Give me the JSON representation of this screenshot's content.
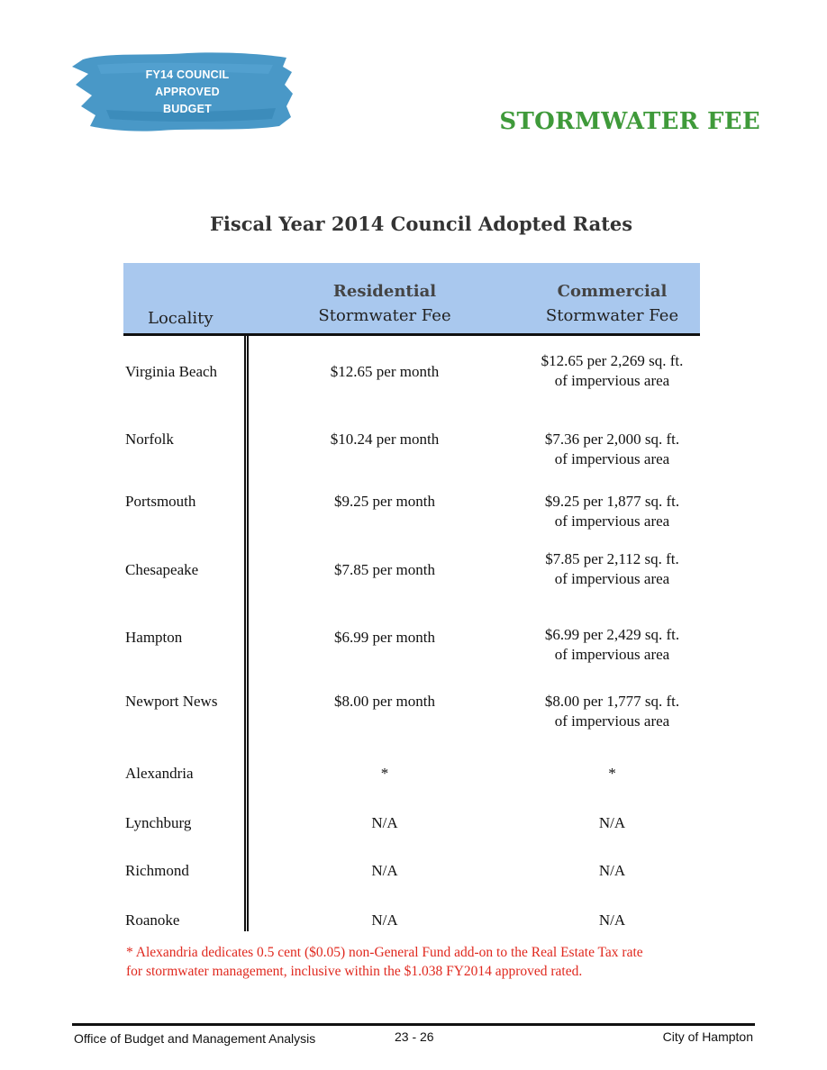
{
  "badge": {
    "lines": [
      "FY14 COUNCIL",
      "APPROVED",
      "BUDGET"
    ],
    "color": "#3a8fc2"
  },
  "section_title": "STORMWATER FEE",
  "table_title": "Fiscal Year 2014 Council Adopted Rates",
  "table": {
    "headers": {
      "locality": "Locality",
      "residential_top": "Residential",
      "residential_bottom": "Stormwater Fee",
      "commercial_top": "Commercial",
      "commercial_bottom": "Stormwater Fee"
    },
    "rows": [
      {
        "locality": "Virginia Beach",
        "residential": "$12.65 per month",
        "commercial": [
          "$12.65 per 2,269 sq. ft.",
          "of impervious area"
        ]
      },
      {
        "locality": "Norfolk",
        "residential": "$10.24 per month",
        "commercial": [
          "$7.36 per 2,000 sq. ft.",
          "of impervious area"
        ]
      },
      {
        "locality": "Portsmouth",
        "residential": "$9.25 per month",
        "commercial": [
          "$9.25 per 1,877 sq. ft.",
          "of impervious area"
        ]
      },
      {
        "locality": "Chesapeake",
        "residential": "$7.85 per month",
        "commercial": [
          "$7.85 per 2,112 sq. ft.",
          "of impervious area"
        ]
      },
      {
        "locality": "Hampton",
        "residential": "$6.99 per month",
        "commercial": [
          "$6.99 per 2,429 sq. ft.",
          "of impervious area"
        ]
      },
      {
        "locality": "Newport News",
        "residential": "$8.00 per month",
        "commercial": [
          "$8.00 per 1,777 sq. ft.",
          "of impervious area"
        ]
      },
      {
        "locality": "Alexandria",
        "residential": "*",
        "commercial": [
          "*"
        ]
      },
      {
        "locality": "Lynchburg",
        "residential": "N/A",
        "commercial": [
          "N/A"
        ]
      },
      {
        "locality": "Richmond",
        "residential": "N/A",
        "commercial": [
          "N/A"
        ]
      },
      {
        "locality": "Roanoke",
        "residential": "N/A",
        "commercial": [
          "N/A"
        ]
      }
    ]
  },
  "footnote": [
    "* Alexandria dedicates 0.5 cent ($0.05) non-General Fund add-on to the Real Estate Tax rate",
    "for stormwater management, inclusive within the $1.038 FY2014 approved rated."
  ],
  "footer": {
    "left": "Office of Budget and Management Analysis",
    "center": "23 - 26",
    "right": "City of Hampton"
  }
}
